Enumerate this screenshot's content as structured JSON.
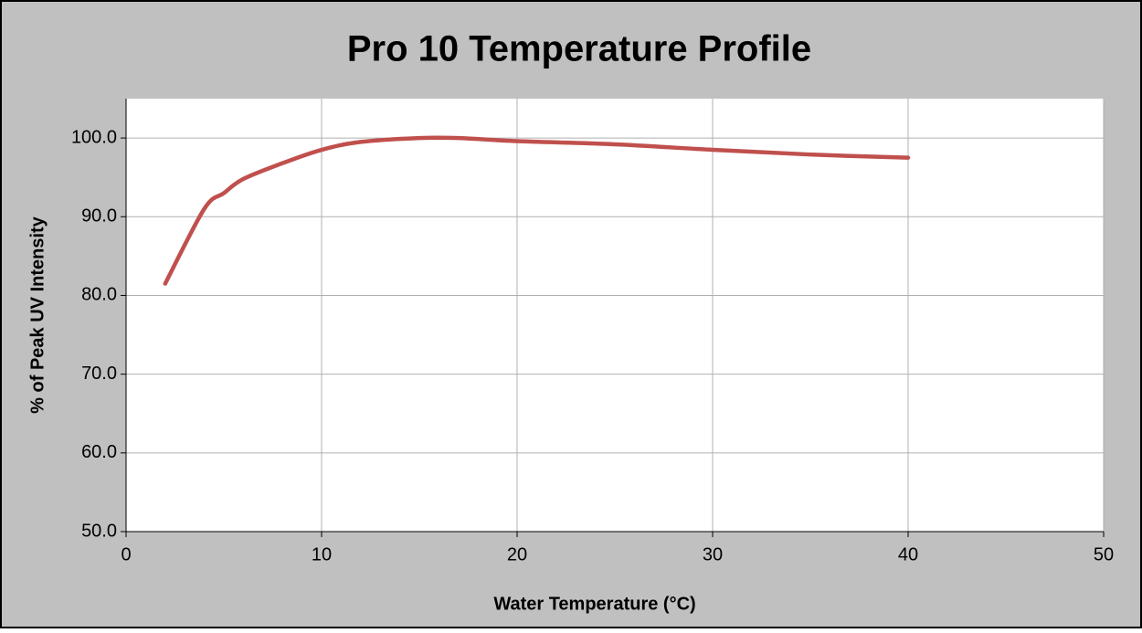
{
  "chart_data": {
    "type": "line",
    "title": "Pro 10 Temperature Profile",
    "x_label": "Water Temperature (°C)",
    "y_label": "% of Peak UV Intensity",
    "x": [
      2,
      4,
      5,
      6,
      8,
      10,
      12,
      15,
      17,
      20,
      25,
      30,
      35,
      40
    ],
    "series": [
      {
        "name": "Pro 10",
        "color": "#c0504d",
        "values": [
          81.5,
          91,
          93,
          94.8,
          96.8,
          98.5,
          99.5,
          100,
          100,
          99.6,
          99.2,
          98.5,
          97.9,
          97.5
        ]
      }
    ],
    "xlim": [
      0,
      50
    ],
    "xticks": [
      0,
      10,
      20,
      30,
      40,
      50
    ],
    "ylim": [
      50,
      105
    ],
    "yticks": [
      {
        "value": 50,
        "label": "50.0"
      },
      {
        "value": 60,
        "label": "60.0"
      },
      {
        "value": 70,
        "label": "70.0"
      },
      {
        "value": 80,
        "label": "80.0"
      },
      {
        "value": 90,
        "label": "90.0"
      },
      {
        "value": 100,
        "label": "100.0"
      }
    ],
    "grid": true,
    "smooth": true
  }
}
